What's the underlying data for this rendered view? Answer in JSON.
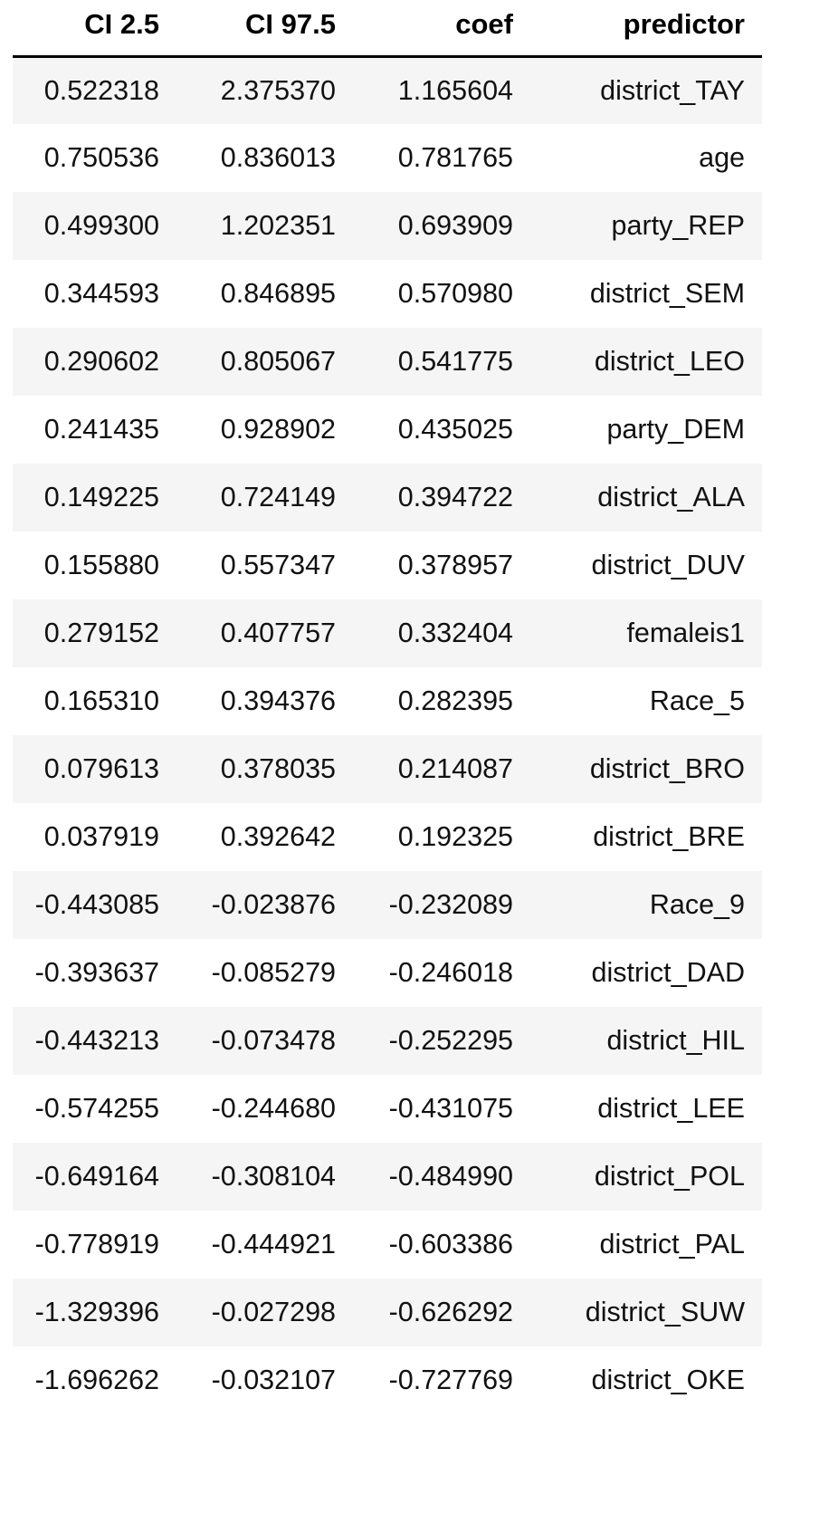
{
  "table": {
    "columns": [
      "CI 2.5",
      "CI 97.5",
      "coef",
      "predictor"
    ],
    "rows": [
      [
        "0.522318",
        "2.375370",
        "1.165604",
        "district_TAY"
      ],
      [
        "0.750536",
        "0.836013",
        "0.781765",
        "age"
      ],
      [
        "0.499300",
        "1.202351",
        "0.693909",
        "party_REP"
      ],
      [
        "0.344593",
        "0.846895",
        "0.570980",
        "district_SEM"
      ],
      [
        "0.290602",
        "0.805067",
        "0.541775",
        "district_LEO"
      ],
      [
        "0.241435",
        "0.928902",
        "0.435025",
        "party_DEM"
      ],
      [
        "0.149225",
        "0.724149",
        "0.394722",
        "district_ALA"
      ],
      [
        "0.155880",
        "0.557347",
        "0.378957",
        "district_DUV"
      ],
      [
        "0.279152",
        "0.407757",
        "0.332404",
        "femaleis1"
      ],
      [
        "0.165310",
        "0.394376",
        "0.282395",
        "Race_5"
      ],
      [
        "0.079613",
        "0.378035",
        "0.214087",
        "district_BRO"
      ],
      [
        "0.037919",
        "0.392642",
        "0.192325",
        "district_BRE"
      ],
      [
        "-0.443085",
        "-0.023876",
        "-0.232089",
        "Race_9"
      ],
      [
        "-0.393637",
        "-0.085279",
        "-0.246018",
        "district_DAD"
      ],
      [
        "-0.443213",
        "-0.073478",
        "-0.252295",
        "district_HIL"
      ],
      [
        "-0.574255",
        "-0.244680",
        "-0.431075",
        "district_LEE"
      ],
      [
        "-0.649164",
        "-0.308104",
        "-0.484990",
        "district_POL"
      ],
      [
        "-0.778919",
        "-0.444921",
        "-0.603386",
        "district_PAL"
      ],
      [
        "-1.329396",
        "-0.027298",
        "-0.626292",
        "district_SUW"
      ],
      [
        "-1.696262",
        "-0.032107",
        "-0.727769",
        "district_OKE"
      ]
    ]
  }
}
